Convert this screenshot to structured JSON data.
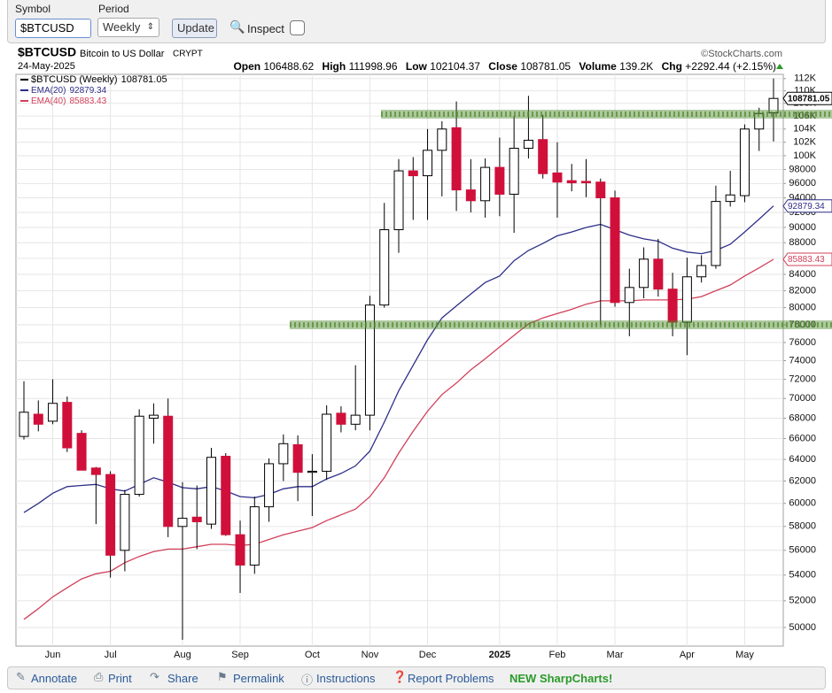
{
  "toolbar": {
    "symbol_label": "Symbol",
    "symbol_value": "$BTCUSD",
    "period_label": "Period",
    "period_value": "Weekly",
    "update": "Update",
    "inspect": "Inspect"
  },
  "footer": {
    "items": [
      "Annotate",
      "Print",
      "Share",
      "Permalink",
      "Instructions",
      "Report Problems"
    ],
    "new": "NEW SharpCharts!"
  },
  "chart_data": {
    "type": "candlestick",
    "symbol": "$BTCUSD",
    "description": "Bitcoin to US Dollar",
    "exchange": "CRYPT",
    "date": "24-May-2025",
    "source": "©StockCharts.com",
    "quote_labels": [
      "Open",
      "High",
      "Low",
      "Close",
      "Volume",
      "Chg"
    ],
    "volume": "139.2K",
    "change": "+2292.44 (+2.15%)",
    "name": "$BTCUSD (Weekly)",
    "up_color": "#ffffff",
    "down_color": "#d0103a",
    "categories": [
      null,
      null,
      "Jun",
      null,
      null,
      null,
      "Jul",
      null,
      null,
      null,
      null,
      "Aug",
      null,
      null,
      null,
      "Sep",
      null,
      null,
      null,
      null,
      "Oct",
      null,
      null,
      null,
      "Nov",
      null,
      null,
      null,
      "Dec",
      null,
      null,
      null,
      null,
      "2025",
      null,
      null,
      null,
      "Feb",
      null,
      null,
      null,
      "Mar",
      null,
      null,
      null,
      null,
      "Apr",
      null,
      null,
      null,
      "May",
      null,
      null
    ],
    "open": [
      66200,
      68400,
      67700,
      69600,
      66500,
      63200,
      62600,
      56000,
      60800,
      68000,
      68200,
      58000,
      58800,
      58200,
      64300,
      57300,
      54800,
      59700,
      63600,
      65400,
      62800,
      62900,
      68500,
      67400,
      68300,
      80300,
      89700,
      97800,
      97100,
      100800,
      104200,
      95100,
      93600,
      98300,
      94500,
      101100,
      102400,
      97500,
      96400,
      96300,
      96200,
      94000,
      80600,
      82400,
      85900,
      82200,
      78300,
      83700,
      85100,
      93500,
      94300,
      104000,
      106488.62
    ],
    "high": [
      71800,
      69800,
      72000,
      70200,
      66800,
      63300,
      62900,
      61200,
      68900,
      69500,
      70000,
      61900,
      61600,
      65100,
      64600,
      58500,
      60600,
      64100,
      66400,
      66300,
      64500,
      69300,
      69200,
      73500,
      81400,
      93300,
      99500,
      99800,
      104000,
      105200,
      108300,
      99500,
      99600,
      102700,
      106000,
      109200,
      106200,
      102000,
      98800,
      99500,
      96700,
      95000,
      84700,
      87400,
      88500,
      84200,
      86100,
      86400,
      95700,
      97800,
      104700,
      107300,
      111998.96
    ],
    "low": [
      65900,
      66700,
      67400,
      64700,
      63000,
      58200,
      53800,
      54300,
      60600,
      65500,
      57100,
      49100,
      56100,
      57800,
      57200,
      52600,
      54100,
      58400,
      62000,
      60200,
      58900,
      62100,
      66600,
      66800,
      66800,
      80000,
      86700,
      91000,
      91000,
      94200,
      92200,
      92000,
      91300,
      91500,
      89300,
      99600,
      96700,
      91300,
      94900,
      94100,
      78000,
      80100,
      76700,
      81100,
      81300,
      76700,
      74600,
      83000,
      84700,
      92800,
      93400,
      100700,
      102104.37
    ],
    "close": [
      68600,
      67400,
      69500,
      65100,
      63000,
      62600,
      55600,
      60800,
      68200,
      68300,
      58000,
      58700,
      58400,
      64200,
      57300,
      54800,
      59700,
      63600,
      65500,
      62800,
      62900,
      68400,
      67400,
      68300,
      80300,
      89700,
      97800,
      97100,
      100800,
      104000,
      95100,
      93600,
      98300,
      94500,
      101100,
      102300,
      97400,
      96200,
      96100,
      96100,
      94000,
      80600,
      82400,
      85900,
      82200,
      78300,
      83700,
      85100,
      93500,
      94400,
      104000,
      106400,
      108781.05
    ],
    "series": [
      {
        "name": "EMA(20)",
        "color": "#2e2e8a",
        "values": [
          59200,
          60000,
          60900,
          61500,
          61600,
          61700,
          61300,
          61100,
          61700,
          62300,
          61900,
          61400,
          61300,
          61500,
          61100,
          60600,
          60500,
          60800,
          61300,
          61500,
          61500,
          62200,
          62700,
          63400,
          64800,
          67600,
          70800,
          73500,
          76300,
          78800,
          80200,
          81600,
          83000,
          83800,
          85700,
          87000,
          87900,
          88900,
          89400,
          90000,
          90400,
          89700,
          89000,
          88500,
          88200,
          87300,
          86800,
          86600,
          87000,
          87800,
          89400,
          91100,
          92879.34
        ]
      },
      {
        "name": "EMA(40)",
        "color": "#d0405a",
        "values": [
          50600,
          51400,
          52300,
          53000,
          53700,
          54100,
          54300,
          55000,
          55500,
          55900,
          56100,
          56100,
          56300,
          56500,
          56500,
          56400,
          56500,
          56900,
          57300,
          57600,
          57900,
          58500,
          59000,
          59500,
          60600,
          62300,
          64600,
          66700,
          68700,
          70400,
          71600,
          73000,
          74200,
          75500,
          76800,
          78100,
          78800,
          79300,
          79800,
          80400,
          80800,
          80800,
          80800,
          80900,
          80900,
          80900,
          81000,
          81300,
          82000,
          82700,
          83800,
          84800,
          85883.43
        ]
      }
    ],
    "levels": [
      106300,
      78000
    ],
    "level_color": "#4f8a2c",
    "yscale": "log",
    "ylim": [
      48650,
      112700
    ],
    "yticks": [
      50000,
      52000,
      54000,
      56000,
      58000,
      60000,
      62000,
      64000,
      66000,
      68000,
      70000,
      72000,
      74000,
      76000,
      78000,
      80000,
      82000,
      84000,
      86000,
      88000,
      90000,
      92000,
      94000,
      96000,
      98000,
      {
        "value": 100000,
        "label": "100K"
      },
      {
        "value": 102000,
        "label": "102K"
      },
      {
        "value": 104000,
        "label": "104K"
      },
      {
        "value": 106000,
        "label": "106K"
      },
      {
        "value": 108000,
        "label": "108K"
      },
      {
        "value": 110000,
        "label": "110K"
      },
      {
        "value": 112000,
        "label": "112K"
      }
    ],
    "grid": true
  }
}
